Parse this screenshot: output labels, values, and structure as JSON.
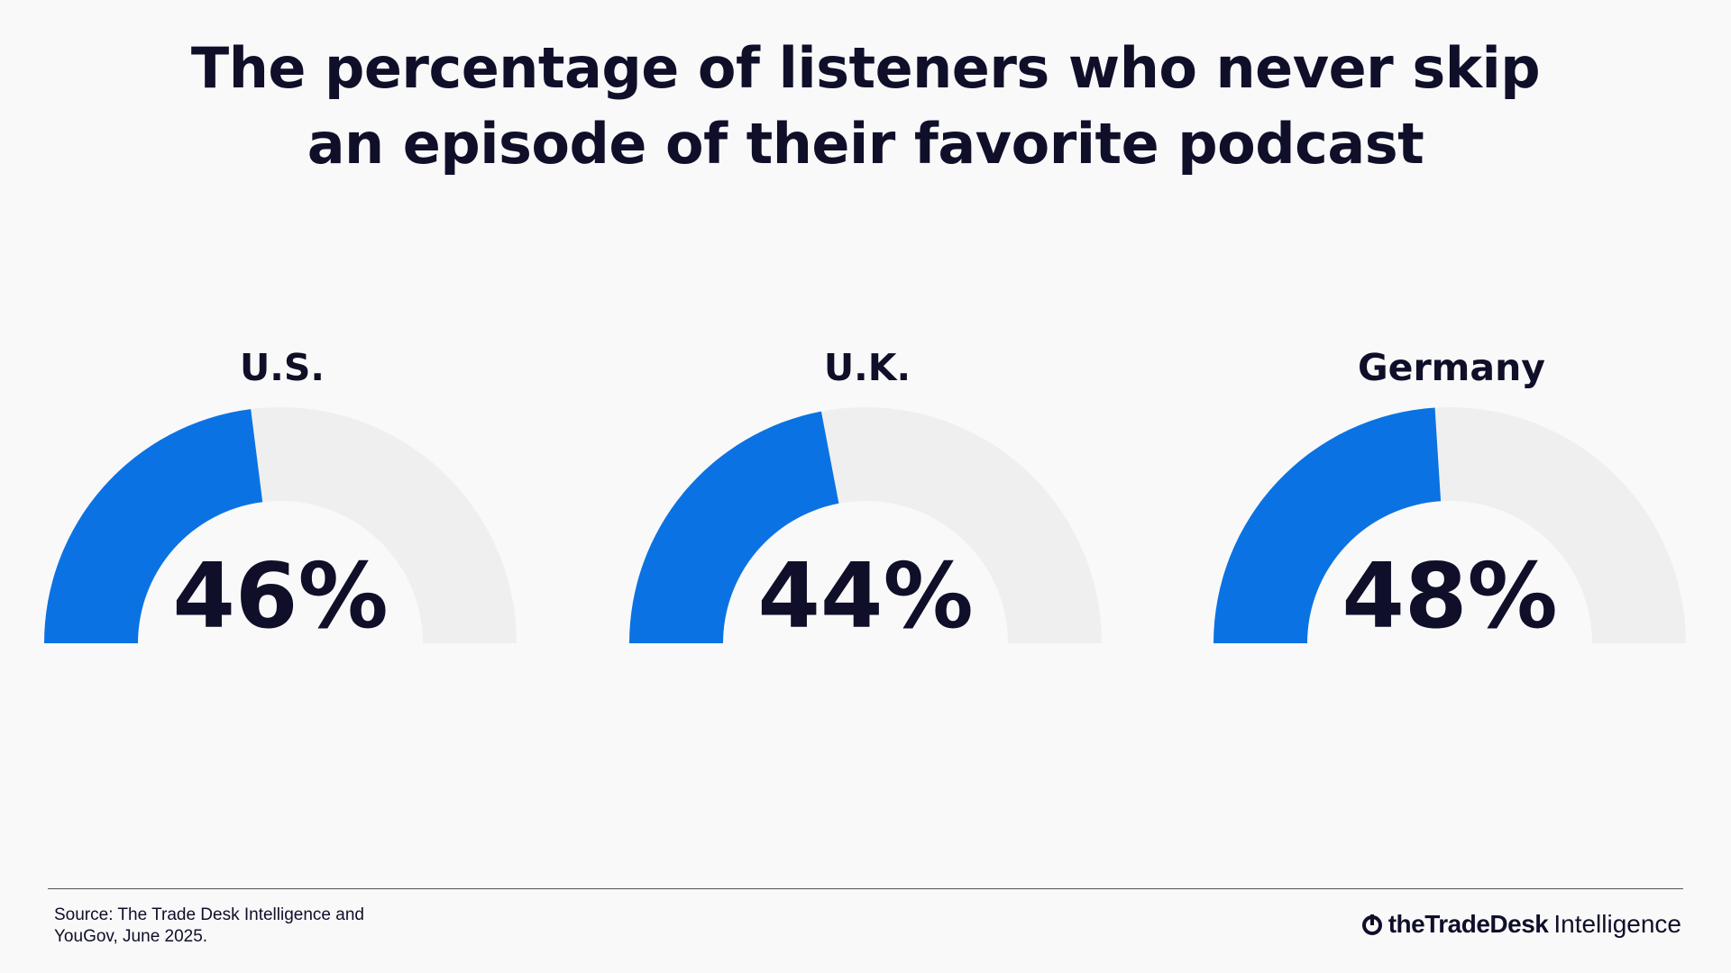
{
  "chart_data": {
    "type": "gauge",
    "title": "The percentage of listeners who never skip an episode of their favorite podcast",
    "categories": [
      "U.S.",
      "U.K.",
      "Germany"
    ],
    "values": [
      46,
      44,
      48
    ],
    "value_labels": [
      "46%",
      "44%",
      "48%"
    ],
    "ylim": [
      0,
      100
    ],
    "color": "#0b72e3",
    "track_color": "#efefef"
  },
  "footer": {
    "source": "Source: The Trade Desk Intelligence and YouGov, June 2025.",
    "logo": {
      "brand": "theTradeDesk",
      "product": "Intelligence"
    }
  }
}
